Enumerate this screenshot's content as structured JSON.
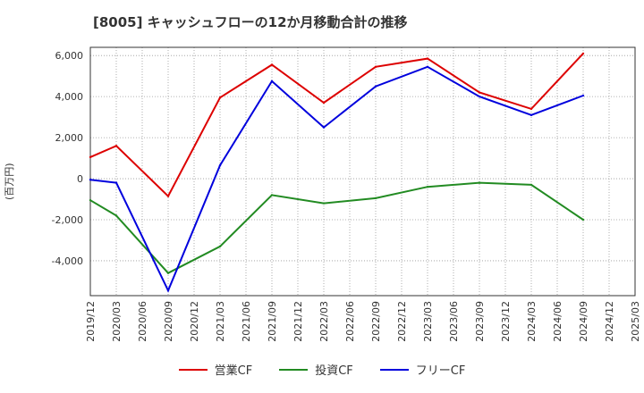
{
  "chart_data": {
    "type": "line",
    "title": "[8005]  キャッシュフローの12か月移動合計の推移",
    "ylabel": "(百万円)",
    "xlabel": "",
    "ylim": [
      -5700,
      6400
    ],
    "yticks": [
      -4000,
      -2000,
      0,
      2000,
      4000,
      6000
    ],
    "ytick_labels": [
      "-4,000",
      "-2,000",
      "0",
      "2,000",
      "4,000",
      "6,000"
    ],
    "categories": [
      "2019/12",
      "2020/03",
      "2020/06",
      "2020/09",
      "2020/12",
      "2021/03",
      "2021/06",
      "2021/09",
      "2021/12",
      "2022/03",
      "2022/06",
      "2022/09",
      "2022/12",
      "2023/03",
      "2023/06",
      "2023/09",
      "2023/12",
      "2024/03",
      "2024/06",
      "2024/09",
      "2024/12",
      "2025/03"
    ],
    "grid": true,
    "legend_position": "bottom",
    "series": [
      {
        "name": "営業CF",
        "color": "#dd0000",
        "values": [
          1050,
          1600,
          null,
          -850,
          null,
          3950,
          null,
          5550,
          null,
          3700,
          null,
          5450,
          null,
          5850,
          null,
          4200,
          null,
          3400,
          null,
          6100,
          null,
          null
        ]
      },
      {
        "name": "投資CF",
        "color": "#228b22",
        "values": [
          -1050,
          -1800,
          null,
          -4600,
          null,
          -3300,
          null,
          -800,
          null,
          -1200,
          null,
          -950,
          null,
          -400,
          null,
          -200,
          null,
          -300,
          null,
          -2000,
          null,
          null
        ]
      },
      {
        "name": "フリーCF",
        "color": "#0000dd",
        "values": [
          -50,
          -200,
          null,
          -5450,
          null,
          650,
          null,
          4750,
          null,
          2500,
          null,
          4500,
          null,
          5450,
          null,
          4000,
          null,
          3100,
          null,
          4050,
          null,
          null
        ]
      }
    ]
  }
}
